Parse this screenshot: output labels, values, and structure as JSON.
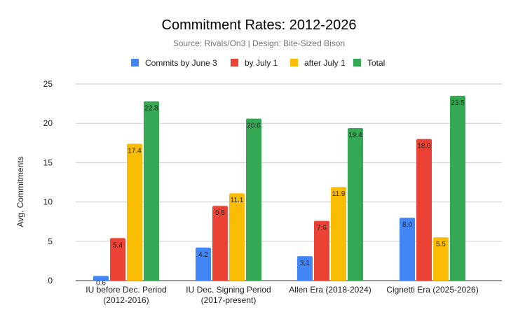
{
  "chart_data": {
    "type": "bar",
    "title": "Commitment Rates: 2012-2026",
    "subtitle": "Source: Rivals/On3 | Design: Bite-Sized Bison",
    "xlabel": "",
    "ylabel": "Avg. Commitments",
    "ylim": [
      0,
      25
    ],
    "yticks": [
      0,
      5,
      10,
      15,
      20,
      25
    ],
    "grid": true,
    "legend_position": "top",
    "categories": [
      [
        "IU before Dec. Period",
        "(2012-2016)"
      ],
      [
        "IU Dec. Signing Period",
        "(2017-present)"
      ],
      [
        "Allen Era (2018-2024)"
      ],
      [
        "Cignetti Era (2025-2026)"
      ]
    ],
    "series": [
      {
        "name": "Commits by June 3",
        "color": "#4285f4",
        "values": [
          0.6,
          4.2,
          3.1,
          8.0
        ],
        "labels": [
          "0.6",
          "4.2",
          "3.1",
          "8.0"
        ]
      },
      {
        "name": "by July 1",
        "color": "#ea4335",
        "values": [
          5.4,
          9.5,
          7.6,
          18.0
        ],
        "labels": [
          "5.4",
          "9.5",
          "7.6",
          "18.0"
        ]
      },
      {
        "name": "after July 1",
        "color": "#fbbc04",
        "values": [
          17.4,
          11.1,
          11.9,
          5.5
        ],
        "labels": [
          "17.4",
          "11.1",
          "11.9",
          "5.5"
        ]
      },
      {
        "name": "Total",
        "color": "#34a853",
        "values": [
          22.8,
          20.6,
          19.4,
          23.5
        ],
        "labels": [
          "22.8",
          "20.6",
          "19.4",
          "23.5"
        ]
      }
    ]
  }
}
